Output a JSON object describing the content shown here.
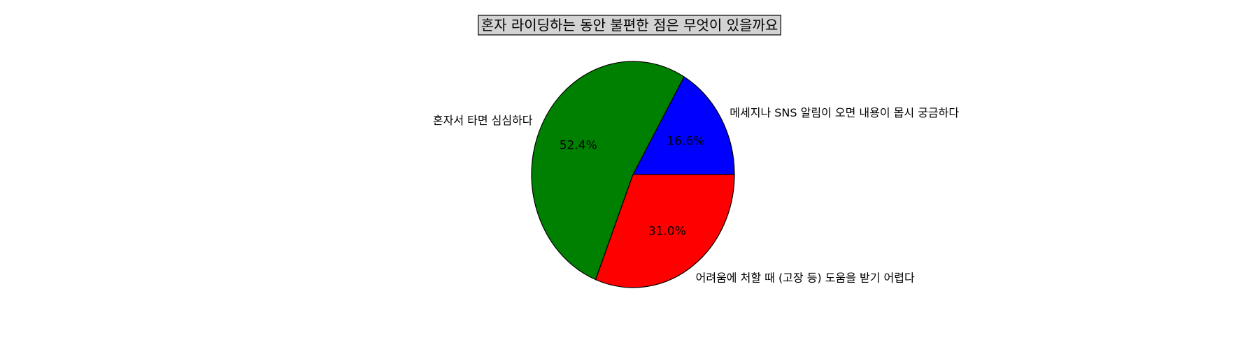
{
  "chart_data": {
    "type": "pie",
    "title": "혼자 라이딩하는 동안 불편한 점은 무엇이 있을까요",
    "slices": [
      {
        "label": "메세지나 SNS 알림이 오면 내용이 몹시 궁금하다",
        "value": 16.6,
        "pct_label": "16.6%",
        "color": "#0000ff"
      },
      {
        "label": "혼자서 타면 심심하다",
        "value": 52.4,
        "pct_label": "52.4%",
        "color": "#008000"
      },
      {
        "label": "어려움에 처할 때 (고장 등) 도움을 받기 어렵다",
        "value": 31.0,
        "pct_label": "31.0%",
        "color": "#ff0000"
      }
    ],
    "start_angle_deg": 0,
    "direction": "counterclockwise",
    "legend": "none"
  }
}
